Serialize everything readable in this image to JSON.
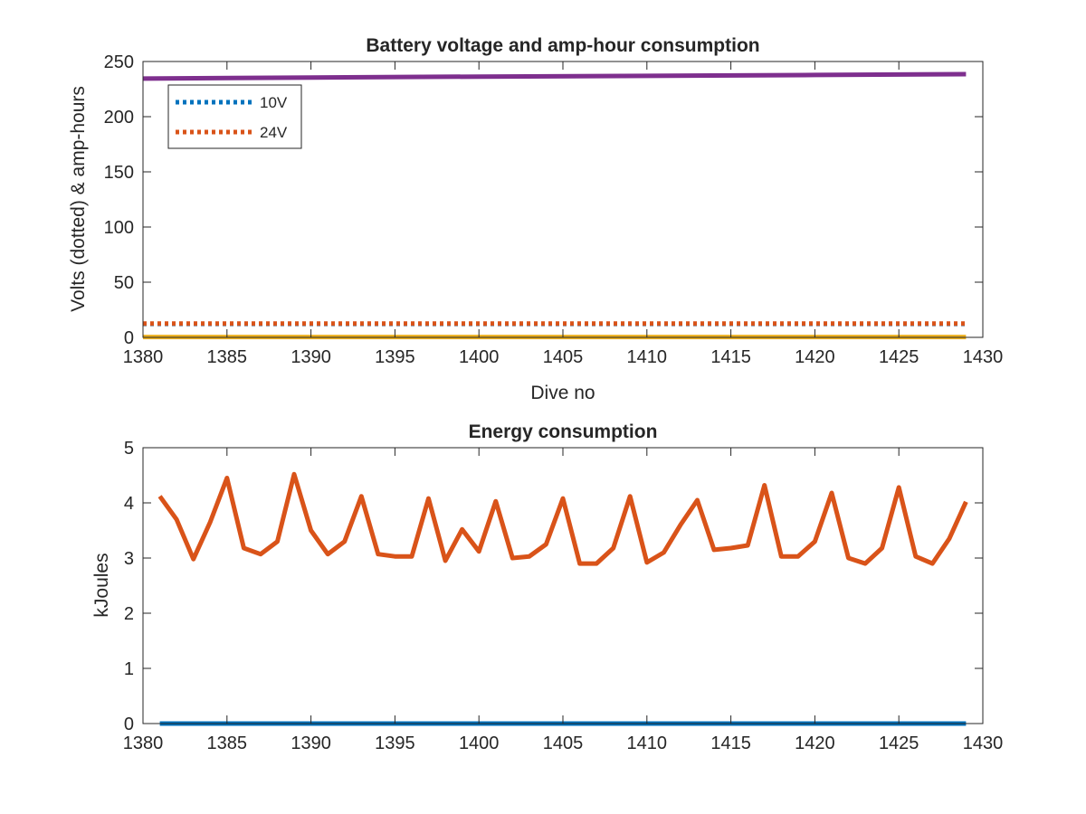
{
  "chart_data": [
    {
      "type": "line",
      "title": "Battery voltage and amp-hour consumption",
      "xlabel": "Dive no",
      "ylabel": "Volts (dotted) & amp-hours",
      "xlim": [
        1380,
        1430
      ],
      "ylim": [
        0,
        250
      ],
      "xticks": [
        "1380",
        "1385",
        "1390",
        "1395",
        "1400",
        "1405",
        "1410",
        "1415",
        "1420",
        "1425",
        "1430"
      ],
      "yticks": [
        "0",
        "50",
        "100",
        "150",
        "200",
        "250"
      ],
      "grid": false,
      "legend_position": "top-left",
      "series": [
        {
          "name": "10V",
          "style": "dotted",
          "color": "#0072BD",
          "x": [
            1380,
            1429
          ],
          "values": [
            12.2,
            12.2
          ]
        },
        {
          "name": "24V",
          "style": "dotted",
          "color": "#D95319",
          "x": [
            1380,
            1429
          ],
          "values": [
            12.5,
            12.5
          ]
        },
        {
          "style": "solid",
          "color": "#EDB120",
          "x": [
            1380,
            1429
          ],
          "values": [
            0.3,
            0.3
          ]
        },
        {
          "style": "solid",
          "color": "#7E2F8E",
          "x": [
            1380,
            1390,
            1400,
            1410,
            1420,
            1429
          ],
          "values": [
            234.5,
            235.5,
            236.3,
            237,
            237.8,
            238.5
          ]
        }
      ]
    },
    {
      "type": "line",
      "title": "Energy consumption",
      "xlabel": "",
      "ylabel": "kJoules",
      "xlim": [
        1380,
        1430
      ],
      "ylim": [
        0,
        5
      ],
      "xticks": [
        "1380",
        "1385",
        "1390",
        "1395",
        "1400",
        "1405",
        "1410",
        "1415",
        "1420",
        "1425",
        "1430"
      ],
      "yticks": [
        "0",
        "1",
        "2",
        "3",
        "4",
        "5"
      ],
      "grid": false,
      "series": [
        {
          "style": "solid",
          "color": "#0072BD",
          "x": [
            1381,
            1429
          ],
          "values": [
            0,
            0
          ]
        },
        {
          "style": "solid",
          "color": "#D95319",
          "x": [
            1381,
            1382,
            1383,
            1384,
            1385,
            1386,
            1387,
            1388,
            1389,
            1390,
            1391,
            1392,
            1393,
            1394,
            1395,
            1396,
            1397,
            1398,
            1399,
            1400,
            1401,
            1402,
            1403,
            1404,
            1405,
            1406,
            1407,
            1408,
            1409,
            1410,
            1411,
            1412,
            1413,
            1414,
            1415,
            1416,
            1417,
            1418,
            1419,
            1420,
            1421,
            1422,
            1423,
            1424,
            1425,
            1426,
            1427,
            1428,
            1429
          ],
          "values": [
            4.12,
            3.7,
            2.98,
            3.65,
            4.45,
            3.18,
            3.07,
            3.3,
            4.52,
            3.5,
            3.07,
            3.3,
            4.12,
            3.07,
            3.03,
            3.03,
            4.08,
            2.95,
            3.52,
            3.12,
            4.03,
            3.0,
            3.03,
            3.25,
            4.08,
            2.9,
            2.9,
            3.18,
            4.12,
            2.92,
            3.1,
            3.6,
            4.05,
            3.15,
            3.18,
            3.23,
            4.32,
            3.03,
            3.03,
            3.3,
            4.18,
            3.0,
            2.9,
            3.18,
            4.28,
            3.03,
            2.9,
            3.35,
            4.02
          ]
        }
      ]
    }
  ]
}
